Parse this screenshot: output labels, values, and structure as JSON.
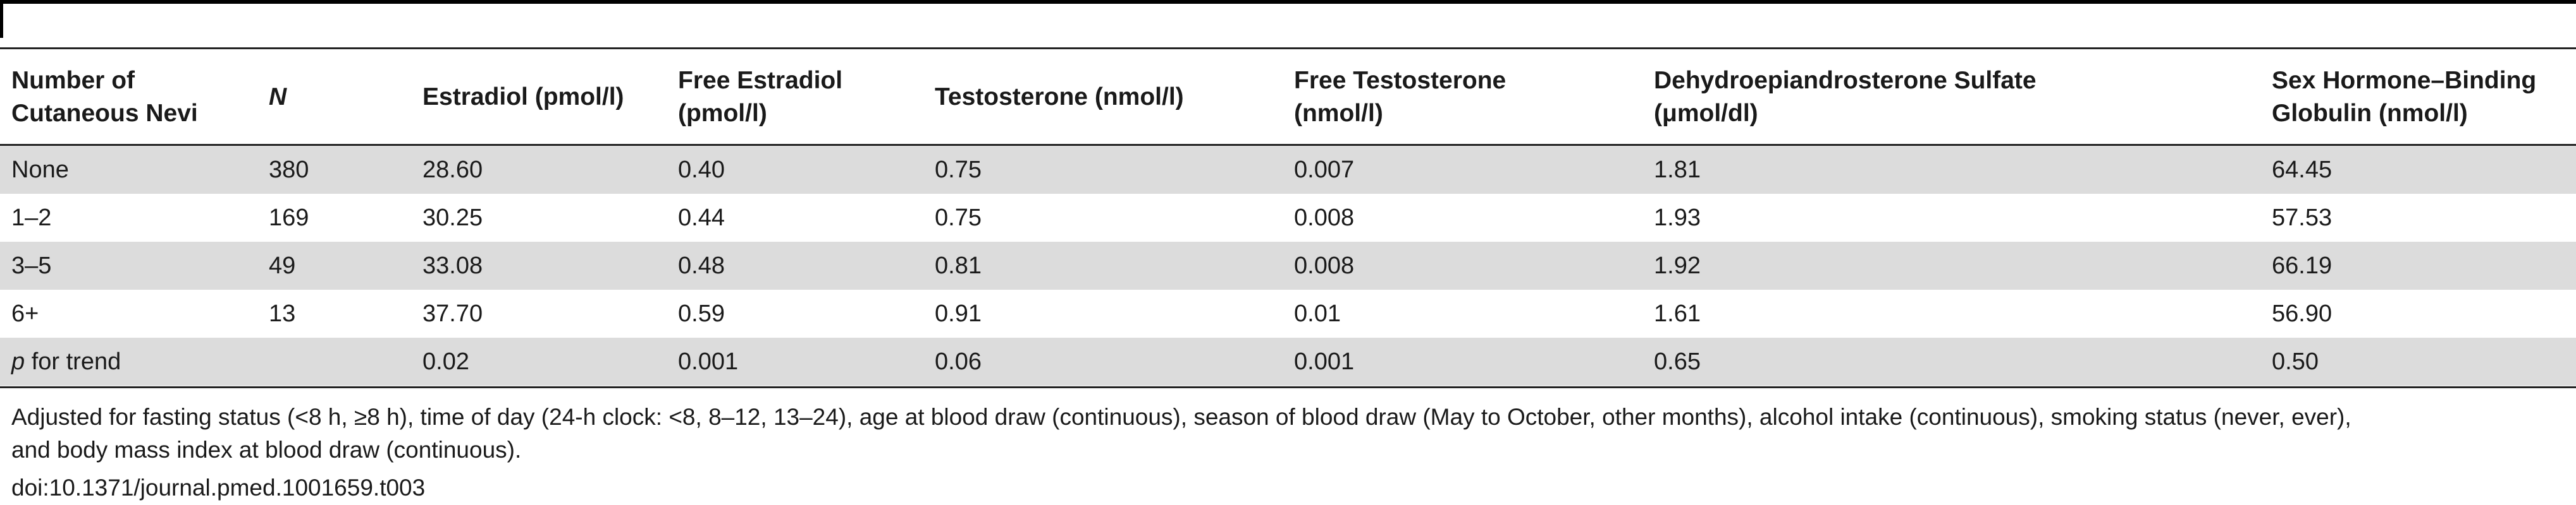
{
  "table": {
    "headers": [
      {
        "line1": "Number of",
        "line2": "Cutaneous Nevi"
      },
      {
        "line1": "N",
        "line2": ""
      },
      {
        "line1": "Estradiol (pmol/l)",
        "line2": ""
      },
      {
        "line1": "Free Estradiol",
        "line2": "(pmol/l)"
      },
      {
        "line1": "Testosterone (nmol/l)",
        "line2": ""
      },
      {
        "line1": "Free Testosterone",
        "line2": "(nmol/l)"
      },
      {
        "line1": "Dehydroepiandrosterone Sulfate",
        "line2": "(μmol/dl)"
      },
      {
        "line1": "Sex Hormone–Binding",
        "line2": "Globulin (nmol/l)"
      }
    ],
    "rows": [
      [
        "None",
        "380",
        "28.60",
        "0.40",
        "0.75",
        "0.007",
        "1.81",
        "64.45"
      ],
      [
        "1–2",
        "169",
        "30.25",
        "0.44",
        "0.75",
        "0.008",
        "1.93",
        "57.53"
      ],
      [
        "3–5",
        "49",
        "33.08",
        "0.48",
        "0.81",
        "0.008",
        "1.92",
        "66.19"
      ],
      [
        "6+",
        "13",
        "37.70",
        "0.59",
        "0.91",
        "0.01",
        "1.61",
        "56.90"
      ],
      [
        "p for trend",
        "",
        "0.02",
        "0.001",
        "0.06",
        "0.001",
        "0.65",
        "0.50"
      ]
    ]
  },
  "footnote": {
    "line1": "Adjusted for fasting status (<8 h, ≥8 h), time of day (24-h clock: <8, 8–12, 13–24), age at blood draw (continuous), season of blood draw (May to October, other months), alcohol intake (continuous), smoking status (never, ever),",
    "line2": "and body mass index at blood draw (continuous).",
    "doi": "doi:10.1371/journal.pmed.1001659.t003"
  }
}
